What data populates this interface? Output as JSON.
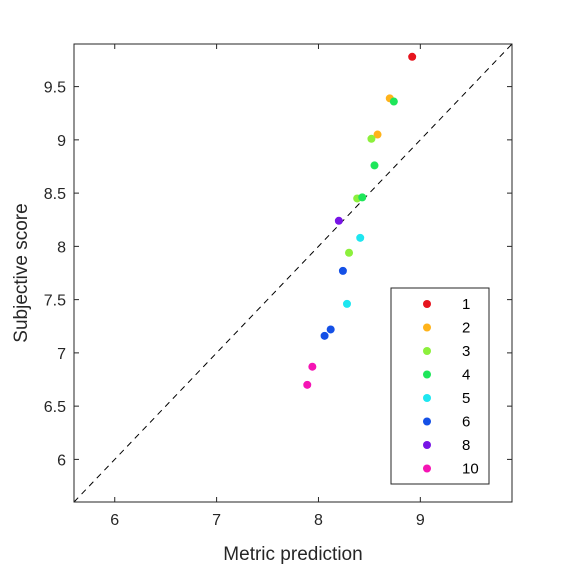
{
  "chart_data": {
    "type": "scatter",
    "title": "",
    "xlabel": "Metric prediction",
    "ylabel": "Subjective score",
    "xlim": [
      5.6,
      9.9
    ],
    "ylim": [
      5.6,
      9.9
    ],
    "x_ticks": [
      6,
      7,
      8,
      9
    ],
    "y_ticks": [
      6,
      6.5,
      7,
      7.5,
      8,
      8.5,
      9,
      9.5
    ],
    "x_tick_labels": [
      "6",
      "7",
      "8",
      "9"
    ],
    "y_tick_labels": [
      "6",
      "6.5",
      "7",
      "7.5",
      "8",
      "8.5",
      "9",
      "9.5"
    ],
    "grid": false,
    "reference_line": "y = x (dashed)",
    "legend_position": "bottom-right",
    "series": [
      {
        "name": "1",
        "color": "#e6141e",
        "points": [
          [
            8.92,
            9.78
          ]
        ]
      },
      {
        "name": "2",
        "color": "#ffb31a",
        "points": [
          [
            8.7,
            9.39
          ],
          [
            8.58,
            9.05
          ]
        ]
      },
      {
        "name": "3",
        "color": "#8cf03c",
        "points": [
          [
            8.52,
            9.01
          ],
          [
            8.38,
            8.45
          ],
          [
            8.3,
            7.94
          ]
        ]
      },
      {
        "name": "4",
        "color": "#1ee65a",
        "points": [
          [
            8.74,
            9.36
          ],
          [
            8.55,
            8.76
          ],
          [
            8.43,
            8.46
          ]
        ]
      },
      {
        "name": "5",
        "color": "#1ee6f0",
        "points": [
          [
            8.41,
            8.08
          ],
          [
            8.28,
            7.46
          ]
        ]
      },
      {
        "name": "6",
        "color": "#1450e6",
        "points": [
          [
            8.24,
            7.77
          ],
          [
            8.12,
            7.22
          ],
          [
            8.06,
            7.16
          ]
        ]
      },
      {
        "name": "8",
        "color": "#7814e6",
        "points": [
          [
            8.2,
            8.24
          ]
        ]
      },
      {
        "name": "10",
        "color": "#f514b4",
        "points": [
          [
            7.94,
            6.87
          ],
          [
            7.89,
            6.7
          ]
        ]
      }
    ]
  }
}
